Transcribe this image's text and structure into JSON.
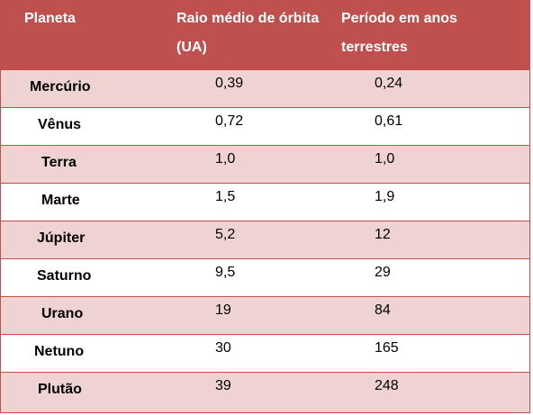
{
  "table": {
    "headers": {
      "planet": "Planeta",
      "radius_line1": "Raio médio de órbita",
      "radius_line2": "(UA)",
      "period_line1": "Período em anos",
      "period_line2": "terrestres"
    },
    "rows": [
      {
        "planet": "Mercúrio",
        "radius": "0,39",
        "period": "0,24"
      },
      {
        "planet": "Vênus",
        "radius": "0,72",
        "period": "0,61"
      },
      {
        "planet": "Terra",
        "radius": "1,0",
        "period": "1,0"
      },
      {
        "planet": "Marte",
        "radius": "1,5",
        "period": "1,9"
      },
      {
        "planet": "Júpiter",
        "radius": "5,2",
        "period": "12"
      },
      {
        "planet": "Saturno",
        "radius": "9,5",
        "period": "29"
      },
      {
        "planet": "Urano",
        "radius": "19",
        "period": "84"
      },
      {
        "planet": "Netuno",
        "radius": "30",
        "period": "165"
      },
      {
        "planet": "Plutão",
        "radius": "39",
        "period": "248"
      }
    ]
  },
  "colors": {
    "header_bg": "#c0504d",
    "band_bg": "#efd3d2",
    "plain_bg": "#ffffff"
  }
}
